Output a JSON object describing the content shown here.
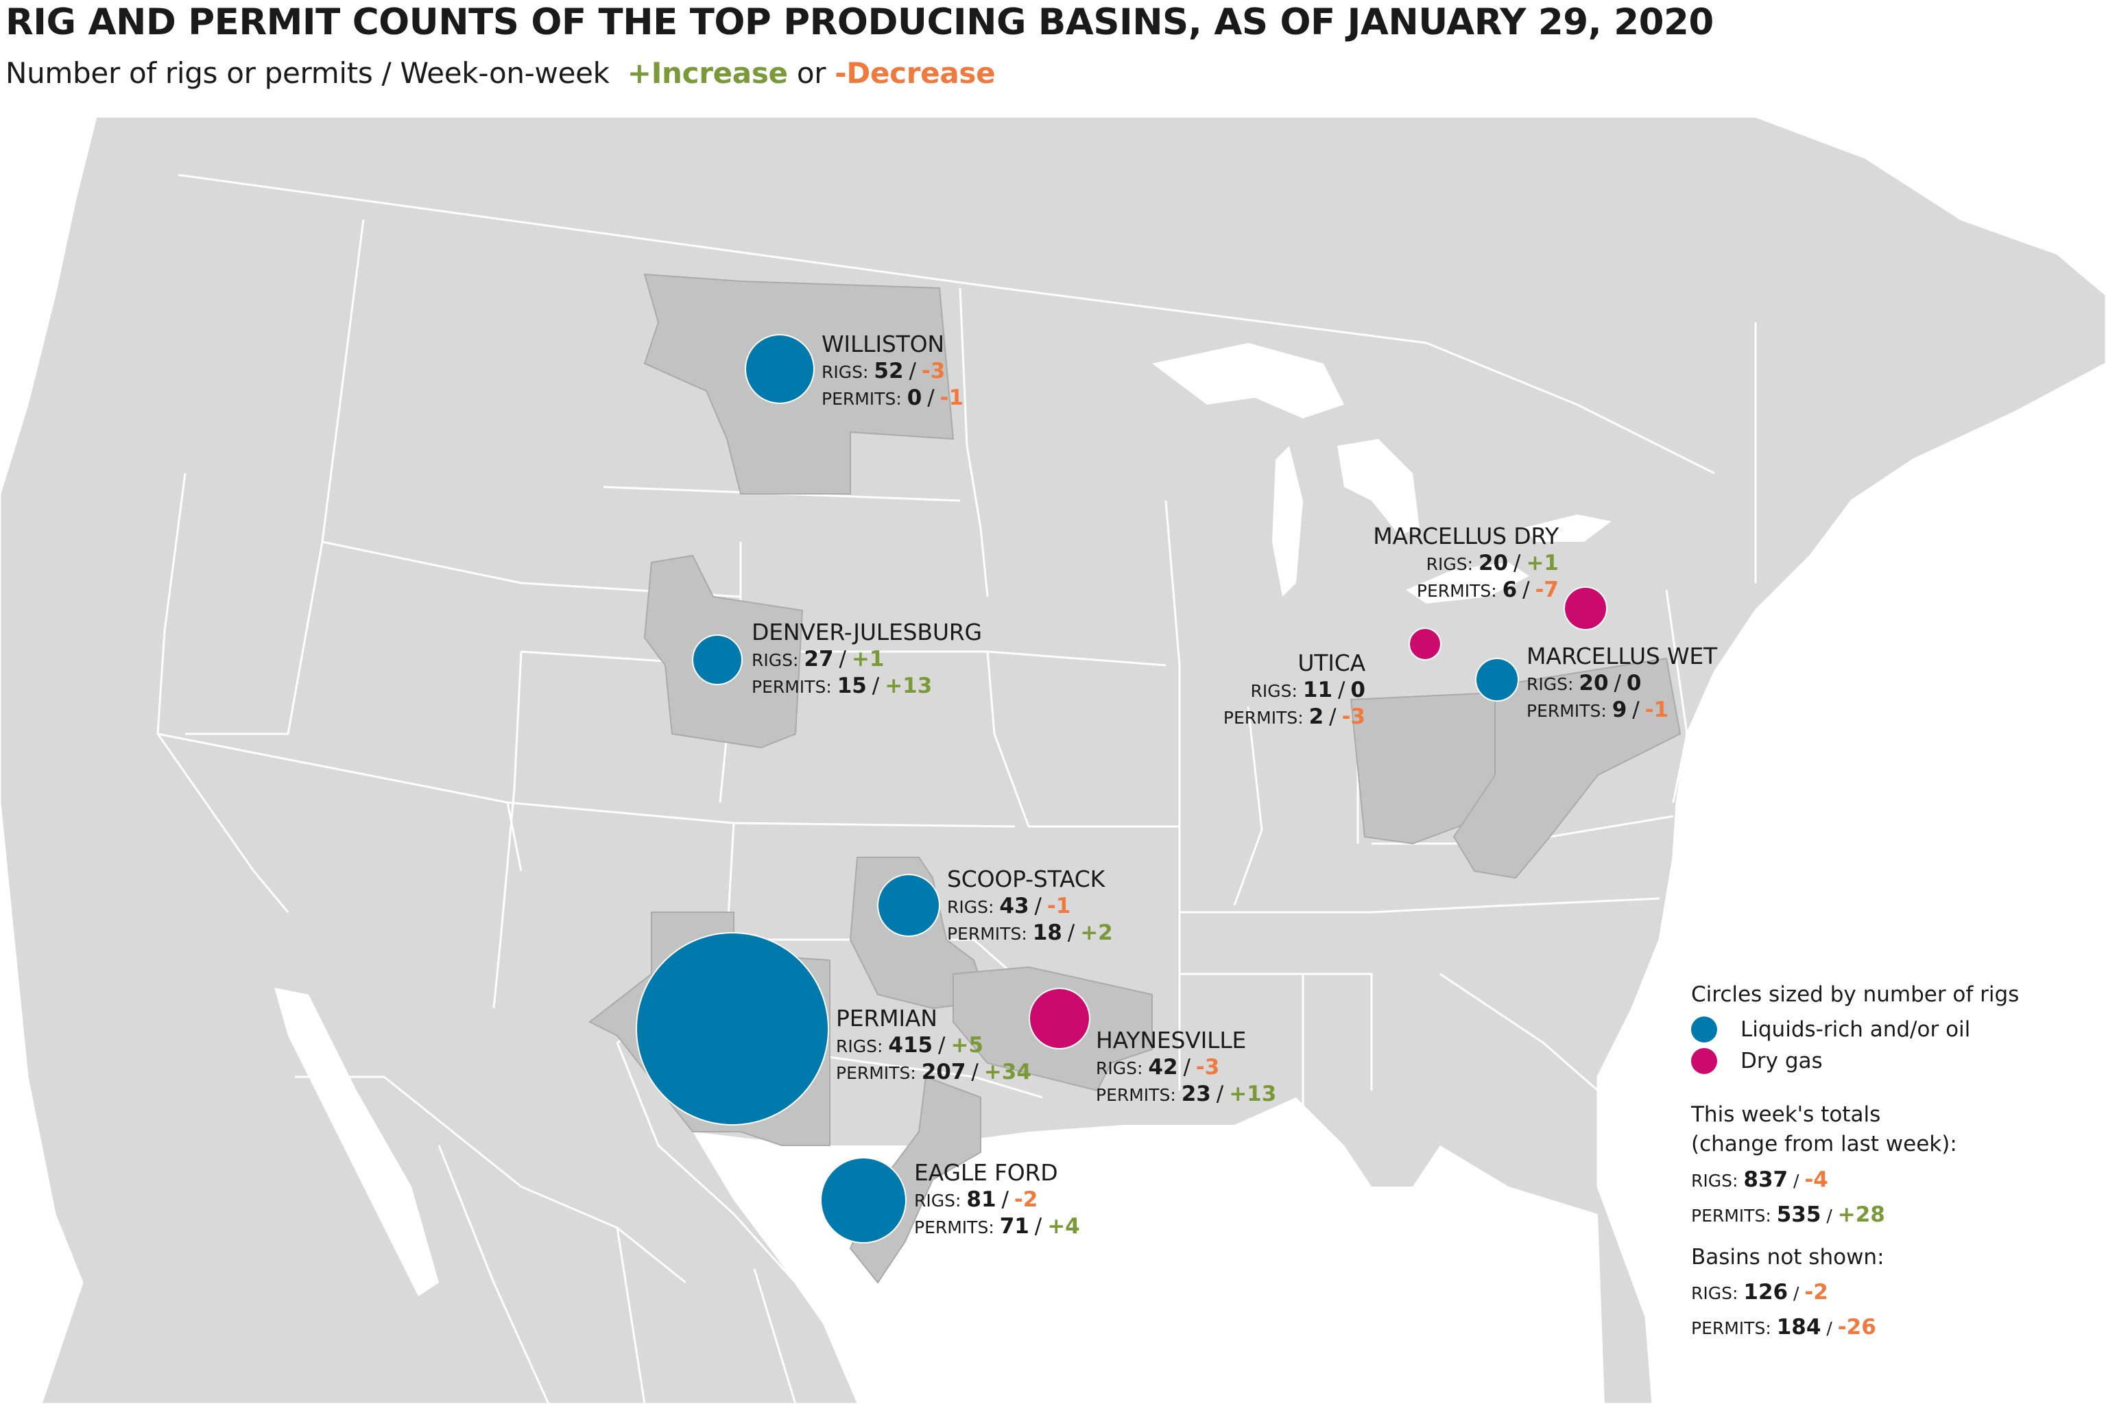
{
  "title": "RIG AND PERMIT COUNTS OF THE TOP PRODUCING BASINS, AS OF JANUARY 29, 2020",
  "subtitle": {
    "prefix": "Number of rigs or permits / Week-on-week",
    "increase": "+Increase",
    "or": "or",
    "decrease": "-Decrease"
  },
  "colors": {
    "liquids": "#0079ad",
    "dry_gas": "#cc0a6e",
    "increase": "#7a9a3a",
    "decrease": "#f07a3e",
    "land": "#d9d9d9",
    "basin": "#c2c2c2",
    "border": "#ffffff"
  },
  "labels": {
    "rigs": "RIGS:",
    "permits": "PERMITS:",
    "slash": "/"
  },
  "basins": [
    {
      "id": "williston",
      "name": "WILLISTON",
      "type": "liquids",
      "rigs": "52",
      "rigs_change": "-3",
      "permits": "0",
      "permits_change": "-1"
    },
    {
      "id": "denver",
      "name": "DENVER-JULESBURG",
      "type": "liquids",
      "rigs": "27",
      "rigs_change": "+1",
      "permits": "15",
      "permits_change": "+13"
    },
    {
      "id": "scoop",
      "name": "SCOOP-STACK",
      "type": "liquids",
      "rigs": "43",
      "rigs_change": "-1",
      "permits": "18",
      "permits_change": "+2"
    },
    {
      "id": "permian",
      "name": "PERMIAN",
      "type": "liquids",
      "rigs": "415",
      "rigs_change": "+5",
      "permits": "207",
      "permits_change": "+34"
    },
    {
      "id": "eagle",
      "name": "EAGLE FORD",
      "type": "liquids",
      "rigs": "81",
      "rigs_change": "-2",
      "permits": "71",
      "permits_change": "+4"
    },
    {
      "id": "haynesville",
      "name": "HAYNESVILLE",
      "type": "dry_gas",
      "rigs": "42",
      "rigs_change": "-3",
      "permits": "23",
      "permits_change": "+13"
    },
    {
      "id": "utica",
      "name": "UTICA",
      "type": "dry_gas",
      "rigs": "11",
      "rigs_change": "0",
      "permits": "2",
      "permits_change": "-3"
    },
    {
      "id": "mdry",
      "name": "MARCELLUS DRY",
      "type": "dry_gas",
      "rigs": "20",
      "rigs_change": "+1",
      "permits": "6",
      "permits_change": "-7"
    },
    {
      "id": "mwet",
      "name": "MARCELLUS WET",
      "type": "liquids",
      "rigs": "20",
      "rigs_change": "0",
      "permits": "9",
      "permits_change": "-1"
    }
  ],
  "legend": {
    "heading": "Circles sized by number of rigs",
    "liquids_label": "Liquids-rich and/or oil",
    "dry_gas_label": "Dry gas",
    "totals_heading_1": "This week's totals",
    "totals_heading_2": "(change from last week):",
    "totals_rigs": "837",
    "totals_rigs_change": "-4",
    "totals_permits": "535",
    "totals_permits_change": "+28",
    "not_shown_heading": "Basins not shown:",
    "not_shown_rigs": "126",
    "not_shown_rigs_change": "-2",
    "not_shown_permits": "184",
    "not_shown_permits_change": "-26"
  }
}
